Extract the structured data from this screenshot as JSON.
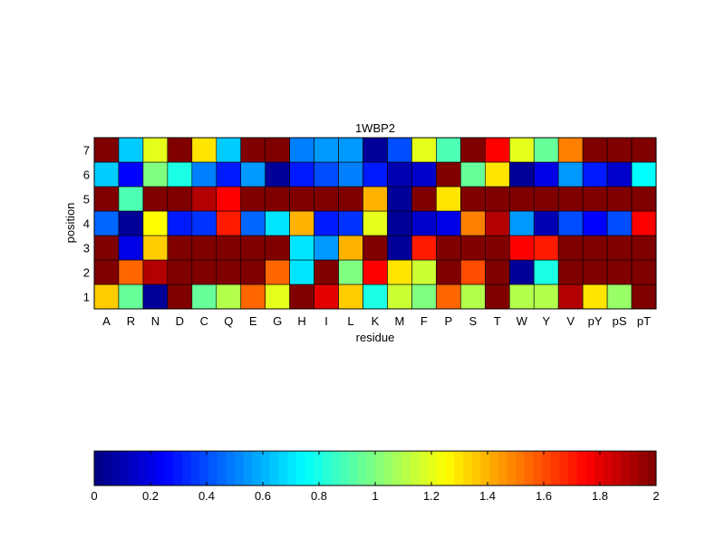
{
  "chart_data": {
    "type": "heatmap",
    "title": "1WBP2",
    "xlabel": "residue",
    "ylabel": "position",
    "x_categories": [
      "A",
      "R",
      "N",
      "D",
      "C",
      "Q",
      "E",
      "G",
      "H",
      "I",
      "L",
      "K",
      "M",
      "F",
      "P",
      "S",
      "T",
      "W",
      "Y",
      "V",
      "pY",
      "pS",
      "pT"
    ],
    "y_categories": [
      "1",
      "2",
      "3",
      "4",
      "5",
      "6",
      "7"
    ],
    "colormap": "jet",
    "clim": [
      0,
      2
    ],
    "colorbar_ticks": [
      "0",
      "0.2",
      "0.4",
      "0.6",
      "0.8",
      "1",
      "1.2",
      "1.4",
      "1.6",
      "1.8",
      "2"
    ],
    "colorbar_placement": "bottom",
    "values_by_position": {
      "7": [
        2,
        0.65,
        1.2,
        2,
        1.3,
        0.65,
        2,
        2,
        0.5,
        0.55,
        0.55,
        0.05,
        0.4,
        1.2,
        0.9,
        2,
        1.75,
        1.2,
        0.95,
        1.5,
        2,
        2,
        2
      ],
      "6": [
        0.65,
        0.25,
        1.0,
        0.8,
        0.5,
        0.3,
        0.55,
        0.05,
        0.3,
        0.4,
        0.5,
        0.3,
        0.1,
        0.15,
        2,
        0.95,
        1.3,
        0.05,
        0.2,
        0.55,
        0.3,
        0.15,
        0.75
      ],
      "5": [
        2,
        0.9,
        2,
        2,
        1.9,
        1.75,
        2,
        2,
        2,
        2,
        2,
        1.4,
        0.05,
        2,
        1.3,
        2,
        2,
        2,
        2,
        2,
        2,
        2,
        2
      ],
      "4": [
        0.45,
        0.05,
        1.25,
        0.3,
        0.35,
        1.7,
        0.45,
        0.7,
        1.4,
        0.3,
        0.35,
        1.2,
        0.05,
        0.15,
        0.2,
        1.5,
        1.9,
        0.55,
        0.1,
        0.4,
        0.25,
        0.4,
        1.75
      ],
      "3": [
        2,
        0.2,
        1.35,
        2,
        2,
        2,
        2,
        2,
        0.7,
        0.55,
        1.4,
        2,
        0.05,
        1.7,
        2,
        2,
        2,
        1.75,
        1.7,
        2,
        2,
        2,
        2
      ],
      "2": [
        2,
        1.55,
        1.9,
        2,
        2,
        2,
        2,
        1.55,
        0.7,
        2,
        1.0,
        1.75,
        1.3,
        1.15,
        2,
        1.6,
        2,
        0.05,
        0.8,
        2,
        2,
        2,
        2
      ],
      "1": [
        1.35,
        0.95,
        0.05,
        2,
        0.95,
        1.1,
        1.55,
        1.2,
        2,
        1.8,
        1.35,
        0.8,
        1.15,
        1.0,
        1.55,
        1.1,
        2,
        1.1,
        1.1,
        1.9,
        1.3,
        1.05,
        2
      ]
    }
  }
}
